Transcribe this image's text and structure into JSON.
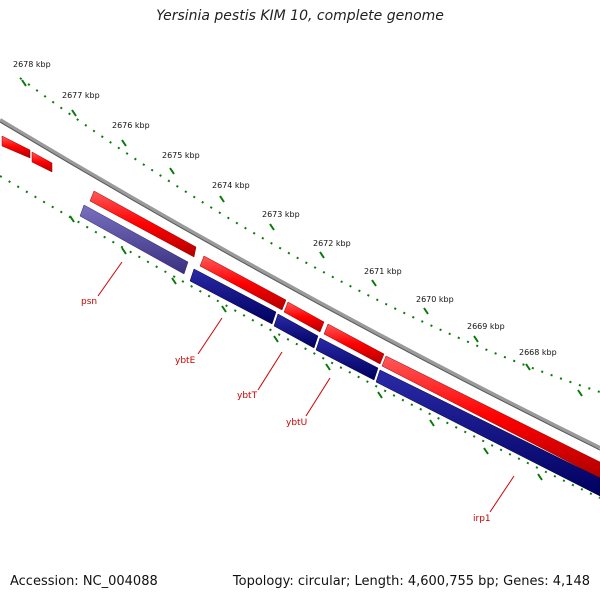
{
  "title": "Yersinia pestis KIM 10, complete genome",
  "footer": {
    "accession": "Accession: NC_004088",
    "summary": "Topology: circular; Length: 4,600,755 bp; Genes: 4,148"
  },
  "colors": {
    "forward_gene": "#ff0000",
    "reverse_gene": "#000080",
    "reverse_gene_highlight": "#4b3f9a",
    "backbone": "#888888",
    "ticks": "#0a7a0a",
    "label": "#cc0000"
  },
  "ruler": {
    "unit": "kbp",
    "ticks": [
      {
        "label": "2678 kbp",
        "kbp": 2678
      },
      {
        "label": "2677 kbp",
        "kbp": 2677
      },
      {
        "label": "2676 kbp",
        "kbp": 2676
      },
      {
        "label": "2675 kbp",
        "kbp": 2675
      },
      {
        "label": "2674 kbp",
        "kbp": 2674
      },
      {
        "label": "2673 kbp",
        "kbp": 2673
      },
      {
        "label": "2672 kbp",
        "kbp": 2672
      },
      {
        "label": "2671 kbp",
        "kbp": 2671
      },
      {
        "label": "2670 kbp",
        "kbp": 2670
      },
      {
        "label": "2669 kbp",
        "kbp": 2669
      },
      {
        "label": "2668 kbp",
        "kbp": 2668
      }
    ]
  },
  "gene_labels": [
    "psn",
    "ybtE",
    "ybtT",
    "ybtU",
    "irp1"
  ]
}
